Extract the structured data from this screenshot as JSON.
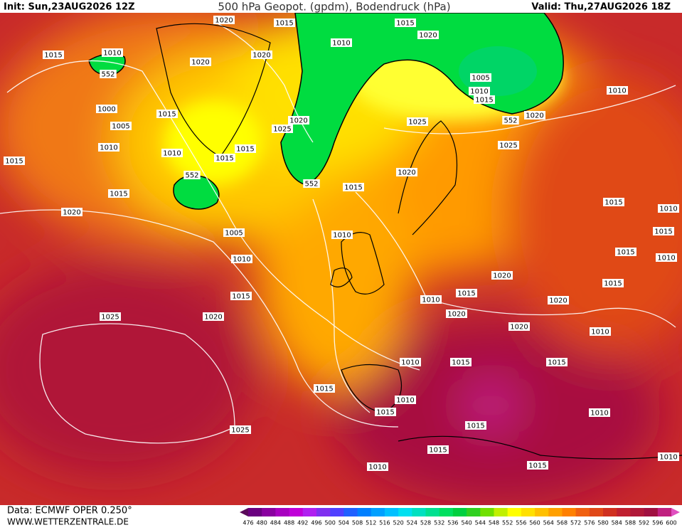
{
  "header": {
    "init": "Init: Sun,23AUG2026 12Z",
    "title": "500 hPa Geopot. (gpdm), Bodendruck (hPa)",
    "valid": "Valid: Thu,27AUG2026 18Z"
  },
  "footer": {
    "source": "Data: ECMWF OPER 0.250°",
    "site": "WWW.WETTERZENTRALE.DE"
  },
  "isobar_labels": [
    1020,
    1015,
    1015,
    1020,
    1010,
    1015,
    1010,
    552,
    1020,
    1020,
    1005,
    1010,
    1010,
    1015,
    1000,
    1015,
    1020,
    552,
    1020,
    1025,
    1005,
    1025,
    1010,
    1015,
    1025,
    1010,
    1015,
    1015,
    552,
    1020,
    552,
    1015,
    1015,
    1015,
    1010,
    1020,
    1005,
    1010,
    1015,
    1015,
    1010,
    1010,
    1020,
    1015,
    1015,
    1015,
    1010,
    1020,
    1020,
    1025,
    1020,
    1020,
    1010,
    1010,
    1015,
    1015,
    1015,
    1010,
    1015,
    1010,
    1015,
    1025,
    1015,
    1010,
    1015,
    1010
  ],
  "color_scale": {
    "values": [
      476,
      480,
      484,
      488,
      492,
      496,
      500,
      504,
      508,
      512,
      516,
      520,
      524,
      528,
      532,
      536,
      540,
      544,
      548,
      552,
      556,
      560,
      564,
      568,
      572,
      576,
      580,
      584,
      588,
      592,
      596,
      600
    ],
    "colors": [
      "#5a0a5a",
      "#6a0080",
      "#8a00a0",
      "#a800c0",
      "#c000d8",
      "#b020f0",
      "#8030f0",
      "#5040ff",
      "#2060ff",
      "#0080ff",
      "#00a0ff",
      "#00c0ff",
      "#00e0f0",
      "#00e0c0",
      "#00e090",
      "#00e060",
      "#00d040",
      "#30d020",
      "#70e000",
      "#c0f000",
      "#ffff00",
      "#ffe000",
      "#ffc000",
      "#ffa000",
      "#ff8000",
      "#f06010",
      "#e04818",
      "#d03020",
      "#c02030",
      "#b01838",
      "#a01040",
      "#c02080",
      "#e050c0"
    ]
  }
}
